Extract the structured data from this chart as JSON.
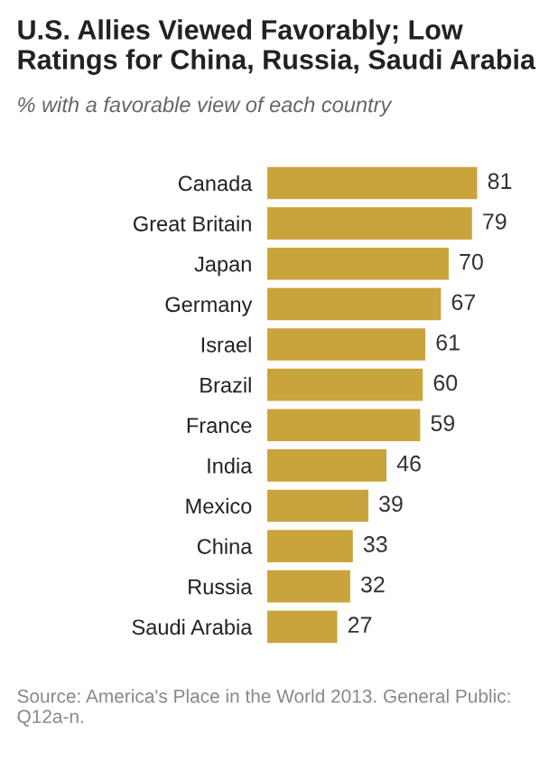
{
  "chart_data": {
    "type": "bar",
    "orientation": "horizontal",
    "title": "U.S. Allies Viewed Favorably; Low Ratings for China, Russia, Saudi Arabia",
    "subtitle": "% with a favorable view of each country",
    "categories": [
      "Canada",
      "Great Britain",
      "Japan",
      "Germany",
      "Israel",
      "Brazil",
      "France",
      "India",
      "Mexico",
      "China",
      "Russia",
      "Saudi Arabia"
    ],
    "values": [
      81,
      79,
      70,
      67,
      61,
      60,
      59,
      46,
      39,
      33,
      32,
      27
    ],
    "color": "#c9a43c",
    "data_labels": true,
    "grid": false,
    "legend": false,
    "annotations": [
      "Source: America's Place in the World 2013. General Public: Q12a-n."
    ]
  }
}
